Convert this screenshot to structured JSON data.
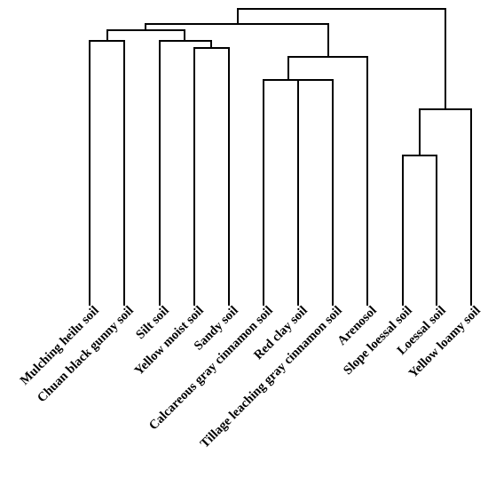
{
  "dendrogram": {
    "leaves": [
      "Mulching heilu soil",
      "Chuan black gunny soil",
      "Silt soil",
      "Yellow moist soil",
      "Sandy soil",
      "Calcareous gray cinnamon soil",
      "Red clay soil",
      "Tillage leaching gray cinnamon soil",
      "Arenosol",
      "Slope loessal soil",
      "Loessal soil",
      "Yellow loamy soil"
    ],
    "colors": {
      "line": "#000000",
      "text": "#000000",
      "background": "#ffffff"
    }
  }
}
